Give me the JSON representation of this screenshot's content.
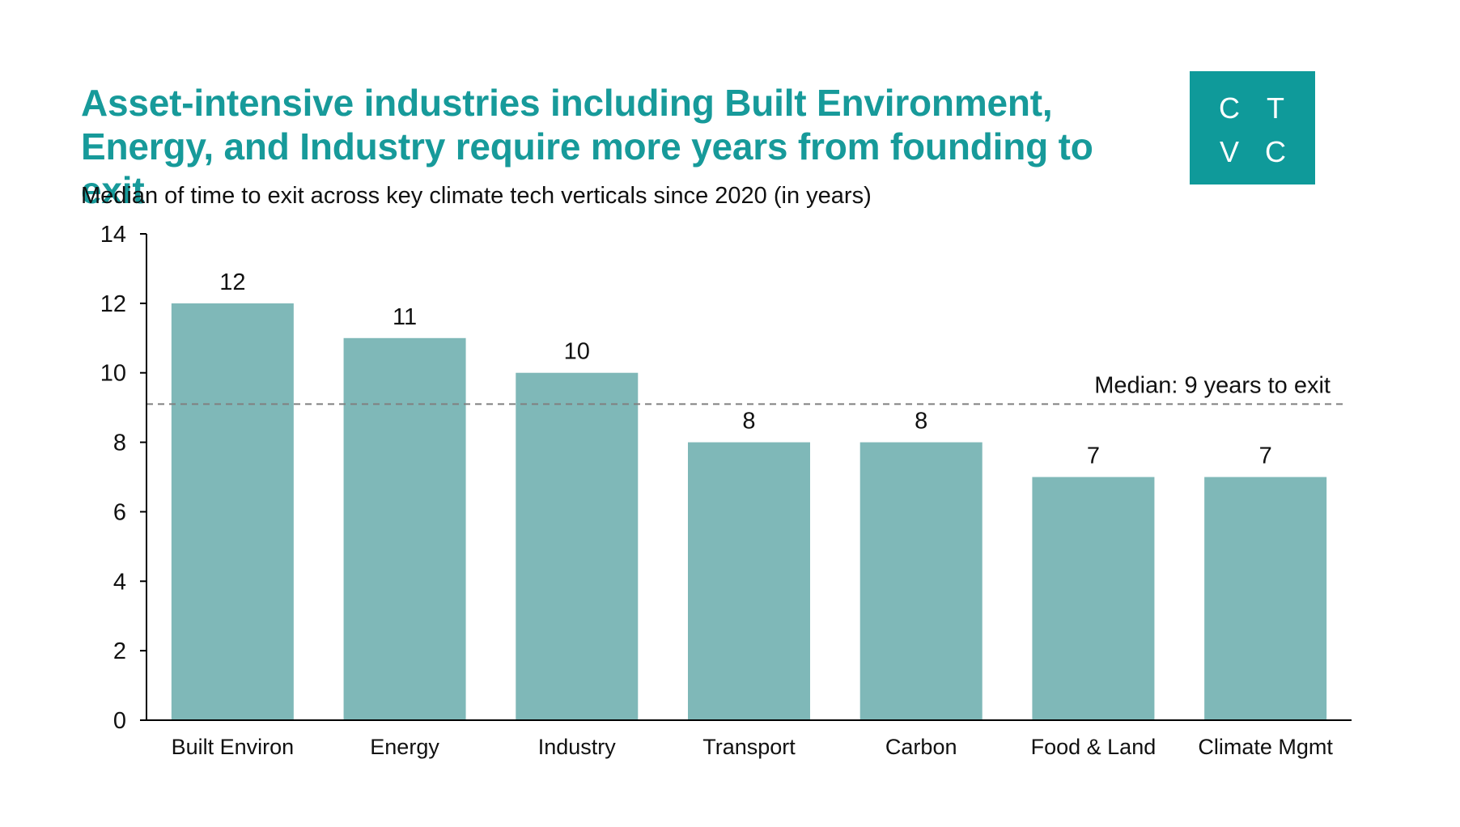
{
  "title_line1": "Asset-intensive industries including Built Environment,",
  "title_line2": "Energy, and Industry require more years from founding to exit",
  "subtitle": "Median of time to exit across key climate tech verticals since 2020 (in years)",
  "logo": {
    "letters": [
      "C",
      "T",
      "V",
      "C"
    ],
    "color": "#0f9a9a"
  },
  "colors": {
    "title": "#179a9a",
    "bar": "#7fb8b8",
    "axis": "#000000",
    "median_line": "#808080"
  },
  "chart_data": {
    "type": "bar",
    "title": "Asset-intensive industries including Built Environment, Energy, and Industry require more years from founding to exit",
    "subtitle": "Median of time to exit across key climate tech verticals since 2020 (in years)",
    "categories": [
      "Built Environ",
      "Energy",
      "Industry",
      "Transport",
      "Carbon",
      "Food & Land",
      "Climate Mgmt"
    ],
    "values": [
      12,
      11,
      10,
      8,
      8,
      7,
      7
    ],
    "value_labels": [
      "12",
      "11",
      "10",
      "8",
      "8",
      "7",
      "7"
    ],
    "xlabel": "",
    "ylabel": "",
    "ylim": [
      0,
      14
    ],
    "yticks": [
      0,
      2,
      4,
      6,
      8,
      10,
      12,
      14
    ],
    "grid": false,
    "legend": "none",
    "reference_line": {
      "value": 9.1,
      "style": "dashed",
      "label": "Median: 9 years to exit"
    }
  }
}
